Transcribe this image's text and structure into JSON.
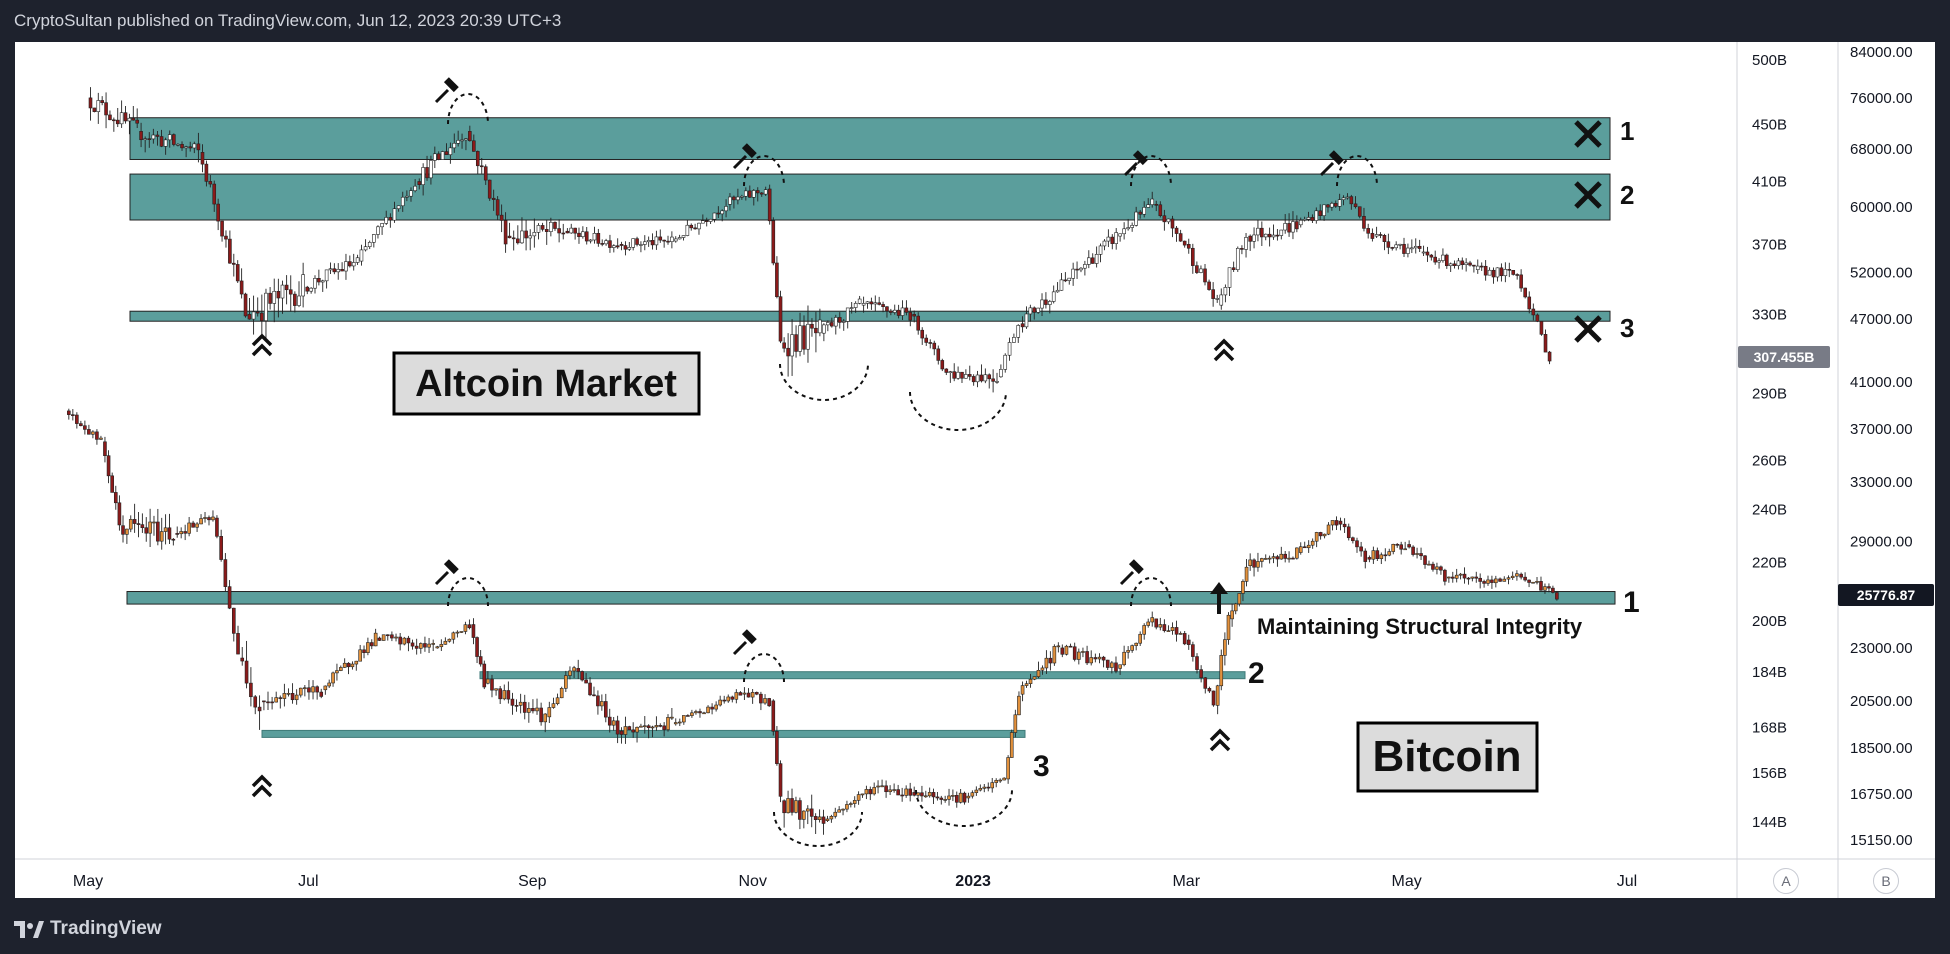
{
  "header": {
    "publish_line": "CryptoSultan published on TradingView.com, Jun 12, 2023 20:39 UTC+3"
  },
  "footer": {
    "brand": "TradingView"
  },
  "axis_buttons": {
    "a": "A",
    "b": "B"
  },
  "colors": {
    "zone": "#5b9e9c",
    "zone_border": "#222222",
    "candle_up_bitcoin": "#e2913c",
    "candle_up_altcoin": "#ffffff",
    "candle_down": "#8b1a1a",
    "price_tag": "#131722",
    "altcoin_tag": "#787b86"
  },
  "chart_data": [
    {
      "type": "candlestick",
      "series_name": "Altcoin Market",
      "label": "Altcoin Market",
      "scale_axis": "left price scale (billions USD)",
      "y_ticks": [
        "500B",
        "450B",
        "410B",
        "370B",
        "330B",
        "290B",
        "260B",
        "240B",
        "220B",
        "200B",
        "184B",
        "168B",
        "156B",
        "144B"
      ],
      "y_tick_values": [
        500,
        450,
        410,
        370,
        330,
        290,
        260,
        240,
        220,
        200,
        184,
        168,
        156,
        144
      ],
      "log_scale": true,
      "current_value": "307.455B",
      "resistance_zones": [
        {
          "id": "1",
          "low": 425,
          "high": 455,
          "marker": "broken"
        },
        {
          "id": "2",
          "low": 385,
          "high": 415,
          "marker": "broken"
        },
        {
          "id": "3",
          "level": 329,
          "marker": "broken"
        }
      ],
      "series": [
        {
          "x": "2022-05-01",
          "open": 510,
          "close": 470,
          "high": 520,
          "low": 440
        },
        {
          "x": "2022-05-15",
          "open": 470,
          "close": 445,
          "high": 480,
          "low": 410
        },
        {
          "x": "2022-06-01",
          "open": 445,
          "close": 430,
          "high": 460,
          "low": 400
        },
        {
          "x": "2022-06-14",
          "open": 420,
          "close": 330,
          "high": 425,
          "low": 318
        },
        {
          "x": "2022-06-30",
          "open": 330,
          "close": 345,
          "high": 360,
          "low": 322
        },
        {
          "x": "2022-07-15",
          "open": 345,
          "close": 360,
          "high": 365,
          "low": 335
        },
        {
          "x": "2022-07-31",
          "open": 360,
          "close": 410,
          "high": 420,
          "low": 355
        },
        {
          "x": "2022-08-14",
          "open": 410,
          "close": 445,
          "high": 460,
          "low": 405
        },
        {
          "x": "2022-08-25",
          "open": 445,
          "close": 375,
          "high": 448,
          "low": 370
        },
        {
          "x": "2022-09-10",
          "open": 375,
          "close": 378,
          "high": 390,
          "low": 365
        },
        {
          "x": "2022-09-25",
          "open": 378,
          "close": 370,
          "high": 385,
          "low": 360
        },
        {
          "x": "2022-10-10",
          "open": 370,
          "close": 372,
          "high": 380,
          "low": 355
        },
        {
          "x": "2022-10-25",
          "open": 372,
          "close": 395,
          "high": 400,
          "low": 365
        },
        {
          "x": "2022-11-05",
          "open": 395,
          "close": 405,
          "high": 412,
          "low": 390
        },
        {
          "x": "2022-11-09",
          "open": 405,
          "close": 315,
          "high": 408,
          "low": 305
        },
        {
          "x": "2022-11-20",
          "open": 315,
          "close": 320,
          "high": 330,
          "low": 300
        },
        {
          "x": "2022-12-01",
          "open": 320,
          "close": 335,
          "high": 340,
          "low": 315
        },
        {
          "x": "2022-12-15",
          "open": 335,
          "close": 330,
          "high": 338,
          "low": 322
        },
        {
          "x": "2022-12-25",
          "open": 330,
          "close": 300,
          "high": 332,
          "low": 292
        },
        {
          "x": "2023-01-08",
          "open": 300,
          "close": 298,
          "high": 305,
          "low": 290
        },
        {
          "x": "2023-01-14",
          "open": 298,
          "close": 325,
          "high": 330,
          "low": 296
        },
        {
          "x": "2023-01-28",
          "open": 325,
          "close": 350,
          "high": 358,
          "low": 322
        },
        {
          "x": "2023-02-10",
          "open": 350,
          "close": 375,
          "high": 382,
          "low": 345
        },
        {
          "x": "2023-02-20",
          "open": 375,
          "close": 395,
          "high": 405,
          "low": 370
        },
        {
          "x": "2023-03-01",
          "open": 395,
          "close": 370,
          "high": 398,
          "low": 362
        },
        {
          "x": "2023-03-10",
          "open": 370,
          "close": 335,
          "high": 372,
          "low": 328
        },
        {
          "x": "2023-03-18",
          "open": 335,
          "close": 375,
          "high": 380,
          "low": 332
        },
        {
          "x": "2023-04-01",
          "open": 375,
          "close": 382,
          "high": 390,
          "low": 370
        },
        {
          "x": "2023-04-15",
          "open": 382,
          "close": 400,
          "high": 412,
          "low": 378
        },
        {
          "x": "2023-04-22",
          "open": 400,
          "close": 375,
          "high": 402,
          "low": 368
        },
        {
          "x": "2023-05-05",
          "open": 375,
          "close": 365,
          "high": 378,
          "low": 360
        },
        {
          "x": "2023-05-20",
          "open": 365,
          "close": 355,
          "high": 368,
          "low": 348
        },
        {
          "x": "2023-06-01",
          "open": 355,
          "close": 352,
          "high": 360,
          "low": 345
        },
        {
          "x": "2023-06-10",
          "open": 352,
          "close": 307,
          "high": 354,
          "low": 295
        }
      ]
    },
    {
      "type": "candlestick",
      "series_name": "Bitcoin",
      "label": "Bitcoin",
      "scale_axis": "right price scale (USD)",
      "y_ticks": [
        "84000.00",
        "76000.00",
        "68000.00",
        "60000.00",
        "52000.00",
        "47000.00",
        "41000.00",
        "37000.00",
        "33000.00",
        "29000.00",
        "23000.00",
        "20500.00",
        "18500.00",
        "16750.00",
        "15150.00"
      ],
      "y_tick_values": [
        84000,
        76000,
        68000,
        60000,
        52000,
        47000,
        41000,
        37000,
        33000,
        29000,
        23000,
        20500,
        18500,
        16750,
        15150
      ],
      "log_scale": true,
      "current_value": "25776.87",
      "support_levels": [
        {
          "id": "1",
          "low": 25300,
          "high": 26000,
          "status": "held"
        },
        {
          "id": "2",
          "level": 21700,
          "status": "reclaimed"
        },
        {
          "id": "3",
          "level": 19100,
          "status": "reclaimed"
        }
      ],
      "annotation": "Maintaining Structural Integrity",
      "series": [
        {
          "x": "2022-04-25",
          "open": 39000,
          "close": 38500,
          "high": 40000,
          "low": 37500
        },
        {
          "x": "2022-05-05",
          "open": 38500,
          "close": 36000,
          "high": 39500,
          "low": 35000
        },
        {
          "x": "2022-05-10",
          "open": 36000,
          "close": 30000,
          "high": 36500,
          "low": 26500
        },
        {
          "x": "2022-05-25",
          "open": 30000,
          "close": 29500,
          "high": 31500,
          "low": 28500
        },
        {
          "x": "2022-06-05",
          "open": 29500,
          "close": 30500,
          "high": 32000,
          "low": 29000
        },
        {
          "x": "2022-06-12",
          "open": 30500,
          "close": 22500,
          "high": 31000,
          "low": 20000
        },
        {
          "x": "2022-06-18",
          "open": 22500,
          "close": 20500,
          "high": 23000,
          "low": 18900
        },
        {
          "x": "2022-07-05",
          "open": 20500,
          "close": 21000,
          "high": 22000,
          "low": 19500
        },
        {
          "x": "2022-07-20",
          "open": 21000,
          "close": 23500,
          "high": 24000,
          "low": 20500
        },
        {
          "x": "2022-08-05",
          "open": 23500,
          "close": 23000,
          "high": 24000,
          "low": 22500
        },
        {
          "x": "2022-08-15",
          "open": 23000,
          "close": 24200,
          "high": 25000,
          "low": 22800
        },
        {
          "x": "2022-08-19",
          "open": 24200,
          "close": 21300,
          "high": 24400,
          "low": 20800
        },
        {
          "x": "2022-09-05",
          "open": 21300,
          "close": 19800,
          "high": 21800,
          "low": 18600
        },
        {
          "x": "2022-09-13",
          "open": 19800,
          "close": 22000,
          "high": 22500,
          "low": 19400
        },
        {
          "x": "2022-09-25",
          "open": 22000,
          "close": 19200,
          "high": 22200,
          "low": 18500
        },
        {
          "x": "2022-10-10",
          "open": 19200,
          "close": 19500,
          "high": 20000,
          "low": 18800
        },
        {
          "x": "2022-10-29",
          "open": 19500,
          "close": 20800,
          "high": 21400,
          "low": 19300
        },
        {
          "x": "2022-11-06",
          "open": 20800,
          "close": 20500,
          "high": 21500,
          "low": 20200
        },
        {
          "x": "2022-11-09",
          "open": 20500,
          "close": 16500,
          "high": 20600,
          "low": 15500
        },
        {
          "x": "2022-11-21",
          "open": 16500,
          "close": 15800,
          "high": 16800,
          "low": 15500
        },
        {
          "x": "2022-12-05",
          "open": 15800,
          "close": 17000,
          "high": 17400,
          "low": 15700
        },
        {
          "x": "2022-12-15",
          "open": 17000,
          "close": 16800,
          "high": 18300,
          "low": 16600
        },
        {
          "x": "2022-12-30",
          "open": 16800,
          "close": 16600,
          "high": 17000,
          "low": 16300
        },
        {
          "x": "2023-01-10",
          "open": 16600,
          "close": 17300,
          "high": 17500,
          "low": 16500
        },
        {
          "x": "2023-01-14",
          "open": 17300,
          "close": 20800,
          "high": 21300,
          "low": 17200
        },
        {
          "x": "2023-01-25",
          "open": 20800,
          "close": 23000,
          "high": 23400,
          "low": 20500
        },
        {
          "x": "2023-02-10",
          "open": 23000,
          "close": 22000,
          "high": 23500,
          "low": 21400
        },
        {
          "x": "2023-02-20",
          "open": 22000,
          "close": 24500,
          "high": 25200,
          "low": 21800
        },
        {
          "x": "2023-03-01",
          "open": 24500,
          "close": 23400,
          "high": 24600,
          "low": 22800
        },
        {
          "x": "2023-03-09",
          "open": 23400,
          "close": 20300,
          "high": 23500,
          "low": 19600
        },
        {
          "x": "2023-03-13",
          "open": 20300,
          "close": 24500,
          "high": 25000,
          "low": 20100
        },
        {
          "x": "2023-03-18",
          "open": 24500,
          "close": 27500,
          "high": 28500,
          "low": 24200
        },
        {
          "x": "2023-04-01",
          "open": 27500,
          "close": 28300,
          "high": 29000,
          "low": 27000
        },
        {
          "x": "2023-04-12",
          "open": 28300,
          "close": 30300,
          "high": 31000,
          "low": 28000
        },
        {
          "x": "2023-04-20",
          "open": 30300,
          "close": 28000,
          "high": 30500,
          "low": 27300
        },
        {
          "x": "2023-05-01",
          "open": 28000,
          "close": 28800,
          "high": 29800,
          "low": 27700
        },
        {
          "x": "2023-05-12",
          "open": 28800,
          "close": 26800,
          "high": 29000,
          "low": 26100
        },
        {
          "x": "2023-05-25",
          "open": 26800,
          "close": 26500,
          "high": 27400,
          "low": 26000
        },
        {
          "x": "2023-06-01",
          "open": 26500,
          "close": 27000,
          "high": 27800,
          "low": 26400
        },
        {
          "x": "2023-06-12",
          "open": 27000,
          "close": 25777,
          "high": 27200,
          "low": 25400
        }
      ]
    }
  ],
  "x_axis": {
    "ticks": [
      "May",
      "Jul",
      "Sep",
      "Nov",
      "2023",
      "Mar",
      "May",
      "Jul"
    ]
  },
  "labels": {
    "altcoin_box": "Altcoin Market",
    "bitcoin_box": "Bitcoin",
    "annotation": "Maintaining Structural Integrity",
    "alt_zone_numbers": [
      "1",
      "2",
      "3"
    ],
    "btc_level_numbers": [
      "1",
      "2",
      "3"
    ]
  }
}
